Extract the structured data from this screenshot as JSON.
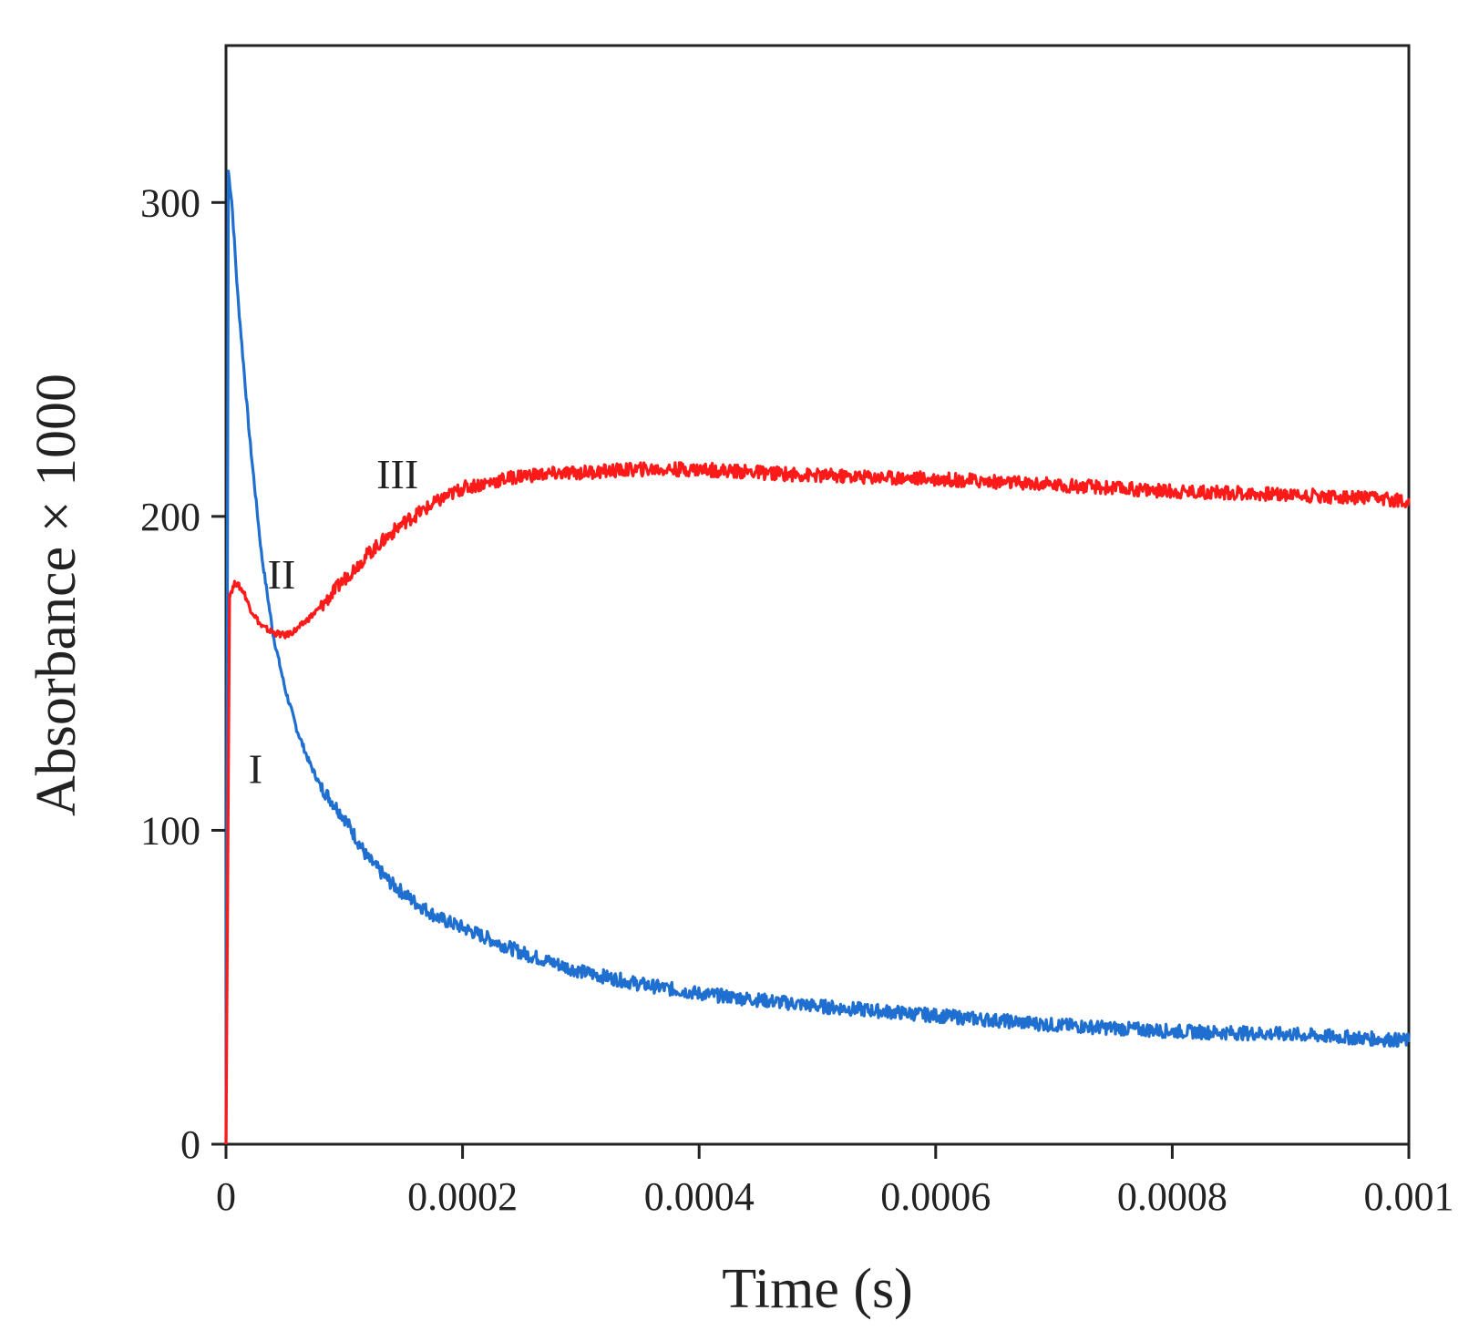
{
  "chart_data": {
    "type": "line",
    "title": "",
    "xlabel": "Time (s)",
    "ylabel": "Absorbance × 1000",
    "xlim": [
      0,
      0.001
    ],
    "ylim": [
      0,
      350
    ],
    "x_ticks": [
      0,
      0.0002,
      0.0004,
      0.0006,
      0.0008,
      0.001
    ],
    "x_tick_labels": [
      "0",
      "0.0002",
      "0.0004",
      "0.0006",
      "0.0008",
      "0.001"
    ],
    "y_ticks": [
      0,
      100,
      200,
      300
    ],
    "y_tick_labels": [
      "0",
      "100",
      "200",
      "300"
    ],
    "grid": false,
    "legend": "none",
    "series": [
      {
        "color": "#1f6fd0",
        "x": [
          0,
          2e-06,
          5e-06,
          1e-05,
          2e-05,
          3e-05,
          4e-05,
          5e-05,
          6e-05,
          7e-05,
          8e-05,
          0.0001,
          0.00012,
          0.00014,
          0.00016,
          0.00018,
          0.0002,
          0.00025,
          0.0003,
          0.00035,
          0.0004,
          0.00045,
          0.0005,
          0.0006,
          0.0007,
          0.0008,
          0.0009,
          0.001
        ],
        "y": [
          0,
          310,
          300,
          270,
          225,
          188,
          162,
          145,
          132,
          122,
          114,
          104,
          91,
          83,
          77,
          72,
          69,
          61,
          55,
          51,
          48,
          46,
          44,
          41,
          38,
          36,
          35,
          33
        ]
      },
      {
        "color": "#ff1a1a",
        "x": [
          0,
          3e-06,
          8e-06,
          1.5e-05,
          2e-05,
          3e-05,
          4e-05,
          5e-05,
          6e-05,
          8e-05,
          0.0001,
          0.00012,
          0.00015,
          0.00018,
          0.0002,
          0.00025,
          0.0003,
          0.00035,
          0.0004,
          0.0005,
          0.0006,
          0.0007,
          0.0008,
          0.0009,
          0.001
        ],
        "y": [
          0,
          175,
          179,
          176,
          171,
          165,
          163,
          162,
          164,
          171,
          180,
          188,
          198,
          205,
          209,
          213,
          214,
          215,
          215,
          213,
          212,
          210,
          208,
          207,
          205
        ]
      }
    ],
    "annotations": [
      {
        "text": "I",
        "x": 2.5e-05,
        "y": 115
      },
      {
        "text": "II",
        "x": 4.7e-05,
        "y": 177
      },
      {
        "text": "III",
        "x": 0.000145,
        "y": 209
      }
    ]
  }
}
